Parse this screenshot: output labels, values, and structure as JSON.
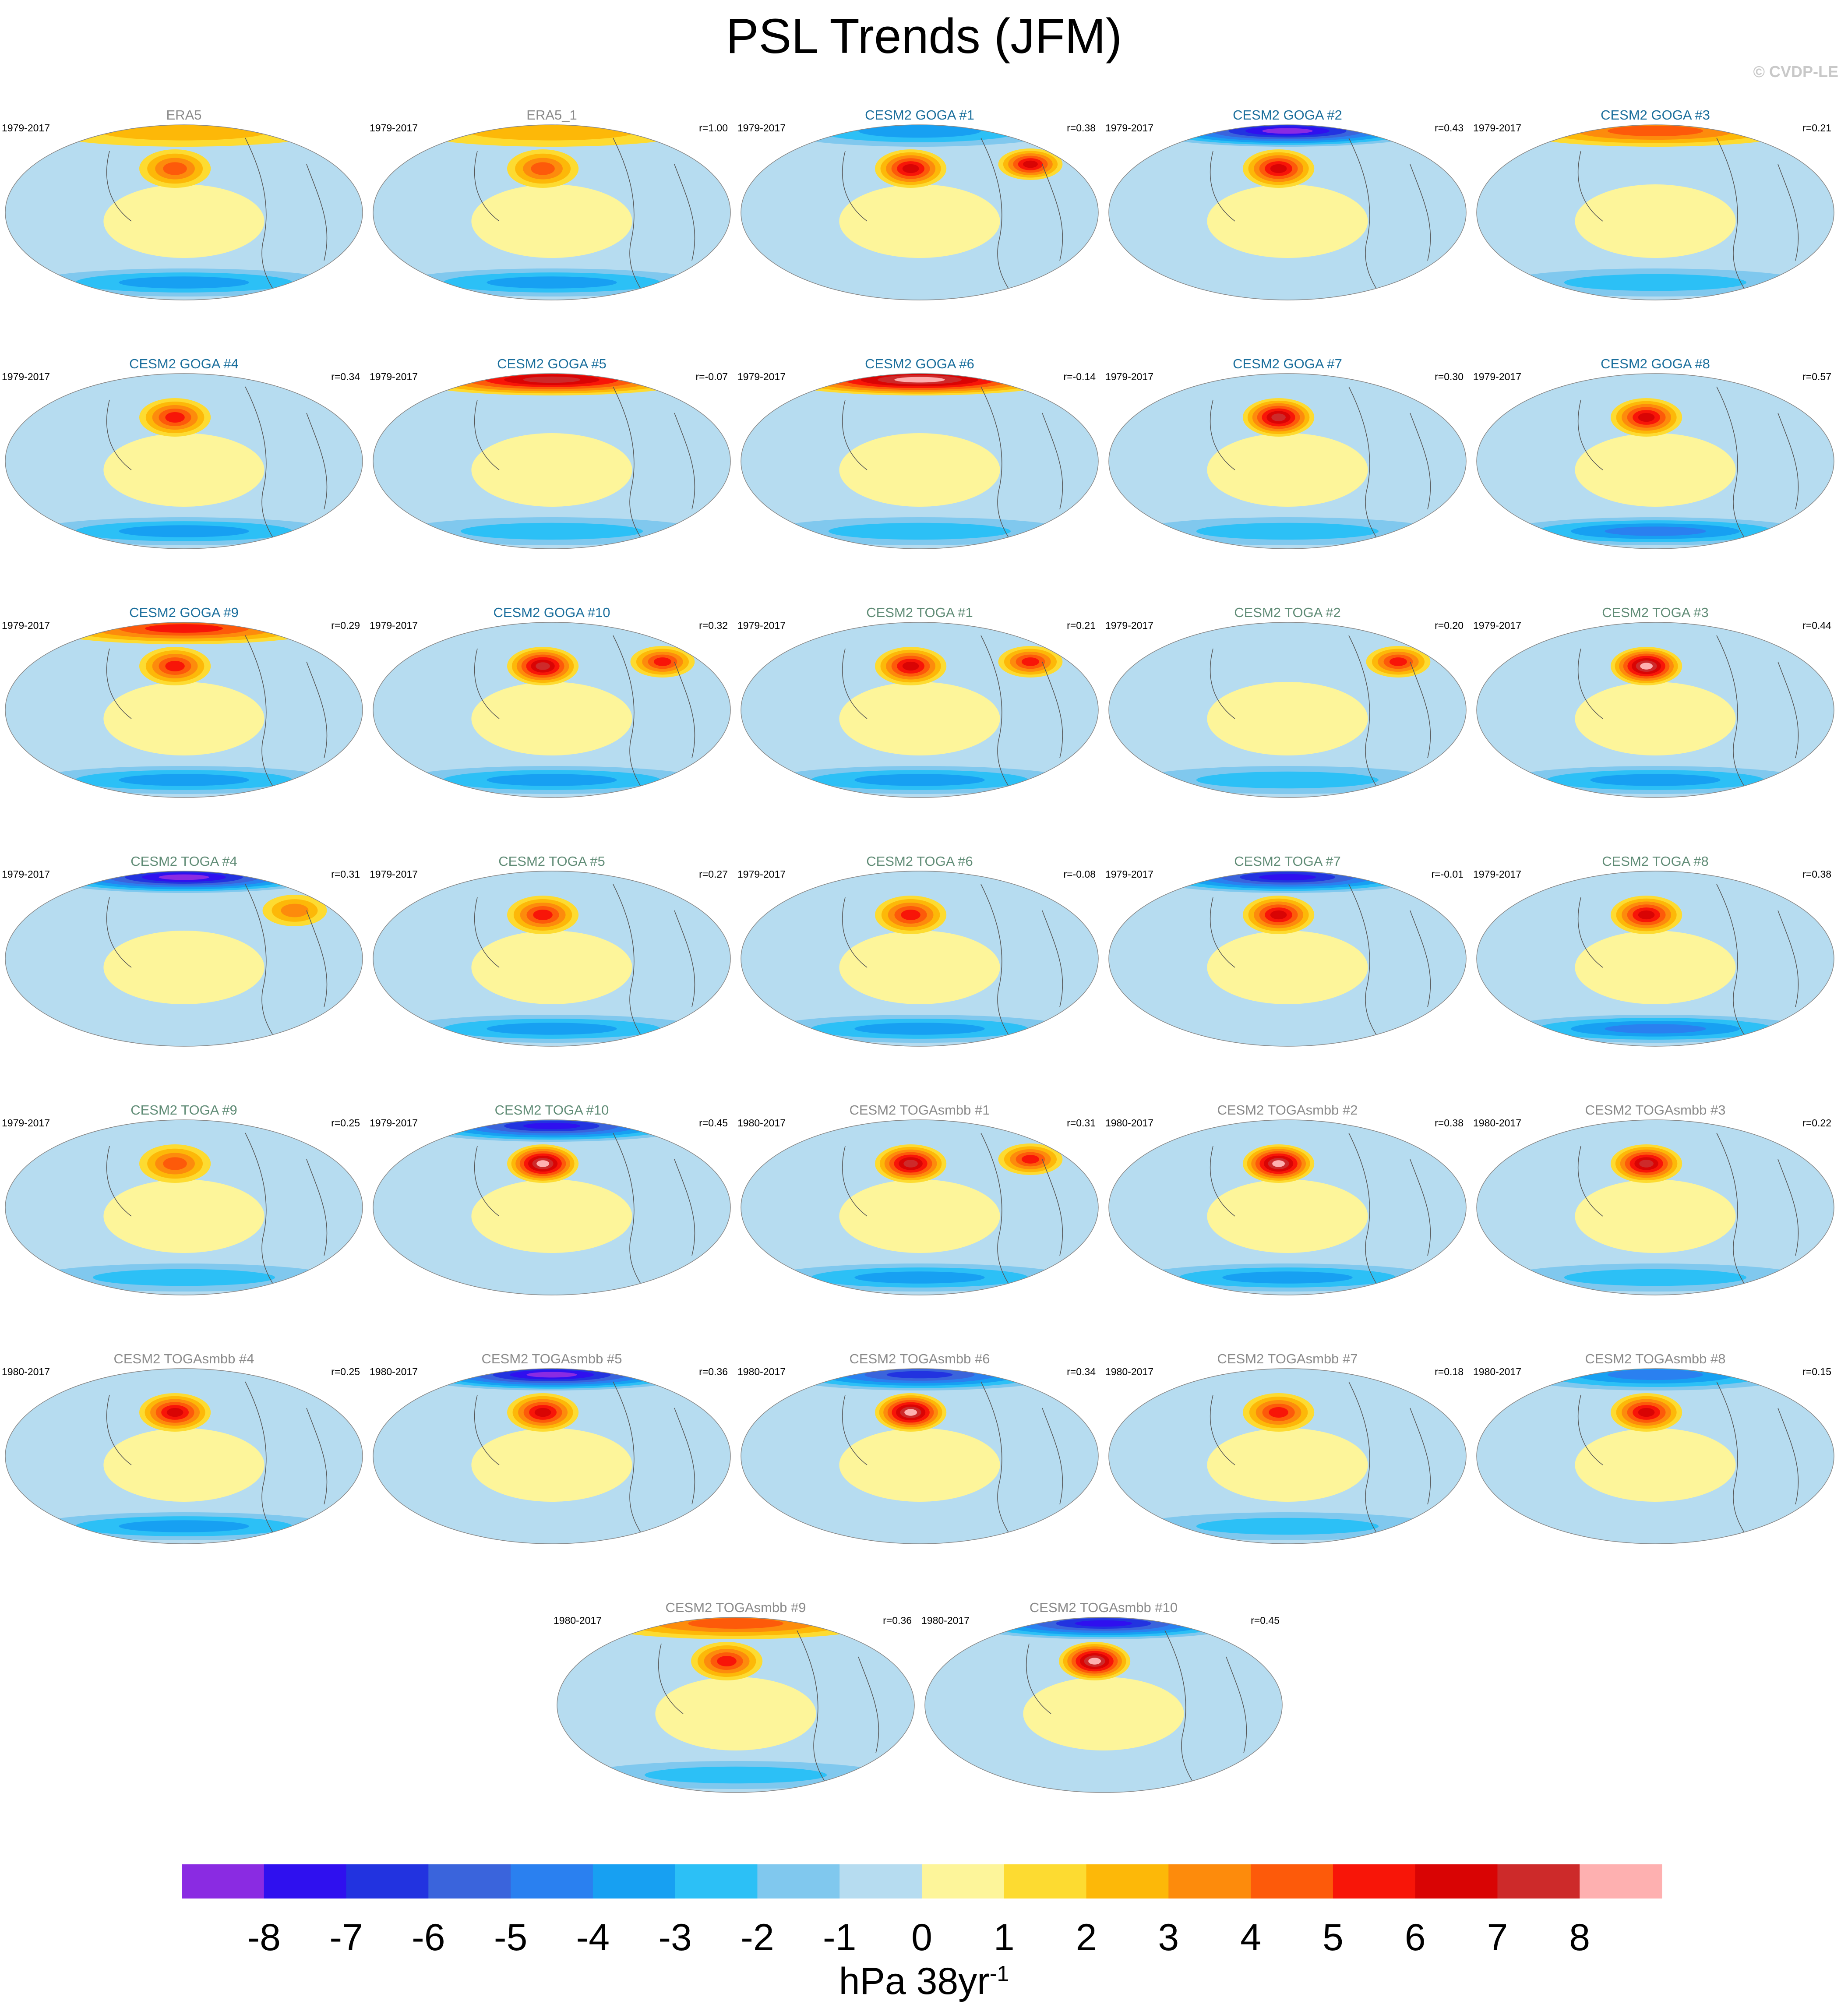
{
  "title": "PSL Trends (JFM)",
  "copyright": "© CVDP-LE",
  "chart_data": {
    "type": "heatmap",
    "title": "PSL Trends (JFM)",
    "projection": "global map panels, contour-filled",
    "panels": [
      {
        "name": "ERA5",
        "period": "1979-2017",
        "r": "",
        "title_color": "#8a8a8a",
        "maxima": [
          [
            "N Pacific",
            4
          ],
          [
            "Arctic",
            2
          ]
        ],
        "minima": [
          [
            "Southern Ocean",
            -3
          ]
        ]
      },
      {
        "name": "ERA5_1",
        "period": "1979-2017",
        "r": "r=1.00",
        "title_color": "#8a8a8a",
        "maxima": [
          [
            "N Pacific",
            4
          ],
          [
            "Arctic",
            2
          ]
        ],
        "minima": [
          [
            "Southern Ocean",
            -3
          ]
        ]
      },
      {
        "name": "CESM2 GOGA #1",
        "period": "1979-2017",
        "r": "r=0.38",
        "title_color": "#1a6e9c",
        "maxima": [
          [
            "N Pacific",
            6
          ],
          [
            "Eurasia",
            6
          ]
        ],
        "minima": [
          [
            "Arctic",
            -3
          ]
        ]
      },
      {
        "name": "CESM2 GOGA #2",
        "period": "1979-2017",
        "r": "r=0.43",
        "title_color": "#1a6e9c",
        "maxima": [
          [
            "N Pacific",
            6
          ]
        ],
        "minima": [
          [
            "Arctic",
            -8
          ]
        ]
      },
      {
        "name": "CESM2 GOGA #3",
        "period": "1979-2017",
        "r": "r=0.21",
        "title_color": "#1a6e9c",
        "maxima": [
          [
            "Arctic",
            4
          ]
        ],
        "minima": [
          [
            "Southern Ocean",
            -2
          ]
        ]
      },
      {
        "name": "CESM2 GOGA #4",
        "period": "1979-2017",
        "r": "r=0.34",
        "title_color": "#1a6e9c",
        "maxima": [
          [
            "N Pacific",
            5
          ]
        ],
        "minima": [
          [
            "Southern Ocean",
            -3
          ]
        ]
      },
      {
        "name": "CESM2 GOGA #5",
        "period": "1979-2017",
        "r": "r=-0.07",
        "title_color": "#1a6e9c",
        "maxima": [
          [
            "Arctic",
            7
          ]
        ],
        "minima": [
          [
            "Southern Ocean",
            -2
          ]
        ]
      },
      {
        "name": "CESM2 GOGA #6",
        "period": "1979-2017",
        "r": "r=-0.14",
        "title_color": "#1a6e9c",
        "maxima": [
          [
            "Arctic",
            8
          ]
        ],
        "minima": [
          [
            "Southern Ocean",
            -2
          ]
        ]
      },
      {
        "name": "CESM2 GOGA #7",
        "period": "1979-2017",
        "r": "r=0.30",
        "title_color": "#1a6e9c",
        "maxima": [
          [
            "N Pacific",
            7
          ]
        ],
        "minima": [
          [
            "Southern Ocean",
            -2
          ]
        ]
      },
      {
        "name": "CESM2 GOGA #8",
        "period": "1979-2017",
        "r": "r=0.57",
        "title_color": "#1a6e9c",
        "maxima": [
          [
            "N Pacific",
            6
          ]
        ],
        "minima": [
          [
            "Southern Ocean",
            -4
          ]
        ]
      },
      {
        "name": "CESM2 GOGA #9",
        "period": "1979-2017",
        "r": "r=0.29",
        "title_color": "#1a6e9c",
        "maxima": [
          [
            "N Pacific",
            5
          ],
          [
            "Arctic",
            5
          ]
        ],
        "minima": [
          [
            "Southern Ocean",
            -3
          ]
        ]
      },
      {
        "name": "CESM2 GOGA #10",
        "period": "1979-2017",
        "r": "r=0.32",
        "title_color": "#1a6e9c",
        "maxima": [
          [
            "N Pacific",
            7
          ],
          [
            "Eurasia",
            5
          ]
        ],
        "minima": [
          [
            "Southern Ocean",
            -3
          ]
        ]
      },
      {
        "name": "CESM2 TOGA #1",
        "period": "1979-2017",
        "r": "r=0.21",
        "title_color": "#5f8b75",
        "maxima": [
          [
            "N Pacific",
            6
          ],
          [
            "Eurasia",
            5
          ]
        ],
        "minima": [
          [
            "Southern Ocean",
            -3
          ]
        ]
      },
      {
        "name": "CESM2 TOGA #2",
        "period": "1979-2017",
        "r": "r=0.20",
        "title_color": "#5f8b75",
        "maxima": [
          [
            "Eurasia",
            5
          ]
        ],
        "minima": [
          [
            "Southern Ocean",
            -2
          ]
        ]
      },
      {
        "name": "CESM2 TOGA #3",
        "period": "1979-2017",
        "r": "r=0.44",
        "title_color": "#5f8b75",
        "maxima": [
          [
            "N Pacific",
            8
          ]
        ],
        "minima": [
          [
            "Southern Ocean",
            -3
          ]
        ]
      },
      {
        "name": "CESM2 TOGA #4",
        "period": "1979-2017",
        "r": "r=0.31",
        "title_color": "#5f8b75",
        "maxima": [
          [
            "Eurasia",
            3
          ]
        ],
        "minima": [
          [
            "Arctic",
            -8
          ]
        ]
      },
      {
        "name": "CESM2 TOGA #5",
        "period": "1979-2017",
        "r": "r=0.27",
        "title_color": "#5f8b75",
        "maxima": [
          [
            "N Pacific",
            5
          ]
        ],
        "minima": [
          [
            "Southern Ocean",
            -3
          ]
        ]
      },
      {
        "name": "CESM2 TOGA #6",
        "period": "1979-2017",
        "r": "r=-0.08",
        "title_color": "#5f8b75",
        "maxima": [
          [
            "N Pacific",
            5
          ]
        ],
        "minima": [
          [
            "Southern Ocean",
            -3
          ]
        ]
      },
      {
        "name": "CESM2 TOGA #7",
        "period": "1979-2017",
        "r": "r=-0.01",
        "title_color": "#5f8b75",
        "maxima": [
          [
            "N Pacific",
            6
          ]
        ],
        "minima": [
          [
            "Arctic",
            -7
          ]
        ]
      },
      {
        "name": "CESM2 TOGA #8",
        "period": "1979-2017",
        "r": "r=0.38",
        "title_color": "#5f8b75",
        "maxima": [
          [
            "N Pacific",
            6
          ]
        ],
        "minima": [
          [
            "Southern Ocean",
            -4
          ]
        ]
      },
      {
        "name": "CESM2 TOGA #9",
        "period": "1979-2017",
        "r": "r=0.25",
        "title_color": "#5f8b75",
        "maxima": [
          [
            "N Pacific",
            4
          ]
        ],
        "minima": [
          [
            "Southern Ocean",
            -2
          ]
        ]
      },
      {
        "name": "CESM2 TOGA #10",
        "period": "1979-2017",
        "r": "r=0.45",
        "title_color": "#5f8b75",
        "maxima": [
          [
            "N Pacific",
            8
          ]
        ],
        "minima": [
          [
            "Arctic",
            -7
          ]
        ]
      },
      {
        "name": "CESM2 TOGAsmbb #1",
        "period": "1980-2017",
        "r": "r=0.31",
        "title_color": "#8a8a8a",
        "maxima": [
          [
            "N Pacific",
            7
          ],
          [
            "Eurasia",
            5
          ]
        ],
        "minima": [
          [
            "Southern Ocean",
            -3
          ]
        ]
      },
      {
        "name": "CESM2 TOGAsmbb #2",
        "period": "1980-2017",
        "r": "r=0.38",
        "title_color": "#8a8a8a",
        "maxima": [
          [
            "N Pacific",
            8
          ]
        ],
        "minima": [
          [
            "Southern Ocean",
            -3
          ]
        ]
      },
      {
        "name": "CESM2 TOGAsmbb #3",
        "period": "1980-2017",
        "r": "r=0.22",
        "title_color": "#8a8a8a",
        "maxima": [
          [
            "N Pacific",
            7
          ]
        ],
        "minima": [
          [
            "Southern Ocean",
            -2
          ]
        ]
      },
      {
        "name": "CESM2 TOGAsmbb #4",
        "period": "1980-2017",
        "r": "r=0.25",
        "title_color": "#8a8a8a",
        "maxima": [
          [
            "N Pacific",
            6
          ]
        ],
        "minima": [
          [
            "Southern Ocean",
            -3
          ]
        ]
      },
      {
        "name": "CESM2 TOGAsmbb #5",
        "period": "1980-2017",
        "r": "r=0.36",
        "title_color": "#8a8a8a",
        "maxima": [
          [
            "N Pacific",
            6
          ]
        ],
        "minima": [
          [
            "Arctic",
            -8
          ]
        ]
      },
      {
        "name": "CESM2 TOGAsmbb #6",
        "period": "1980-2017",
        "r": "r=0.34",
        "title_color": "#8a8a8a",
        "maxima": [
          [
            "N Pacific",
            8
          ]
        ],
        "minima": [
          [
            "Arctic",
            -6
          ]
        ]
      },
      {
        "name": "CESM2 TOGAsmbb #7",
        "period": "1980-2017",
        "r": "r=0.18",
        "title_color": "#8a8a8a",
        "maxima": [
          [
            "N Pacific",
            5
          ]
        ],
        "minima": [
          [
            "Southern Ocean",
            -2
          ]
        ]
      },
      {
        "name": "CESM2 TOGAsmbb #8",
        "period": "1980-2017",
        "r": "r=0.15",
        "title_color": "#8a8a8a",
        "maxima": [
          [
            "N Pacific",
            6
          ]
        ],
        "minima": [
          [
            "Arctic",
            -4
          ]
        ]
      },
      {
        "name": "CESM2 TOGAsmbb #9",
        "period": "1980-2017",
        "r": "r=0.36",
        "title_color": "#8a8a8a",
        "maxima": [
          [
            "N Pacific",
            5
          ],
          [
            "Arctic",
            4
          ]
        ],
        "minima": [
          [
            "Southern Ocean",
            -2
          ]
        ]
      },
      {
        "name": "CESM2 TOGAsmbb #10",
        "period": "1980-2017",
        "r": "r=0.45",
        "title_color": "#8a8a8a",
        "maxima": [
          [
            "N Pacific",
            8
          ]
        ],
        "minima": [
          [
            "Arctic",
            -7
          ]
        ]
      }
    ],
    "colorbar": {
      "levels": [
        -8,
        -7,
        -6,
        -5,
        -4,
        -3,
        -2,
        -1,
        0,
        1,
        2,
        3,
        4,
        5,
        6,
        7,
        8
      ],
      "tick_labels": [
        "-8",
        "-7",
        "-6",
        "-5",
        "-4",
        "-3",
        "-2",
        "-1",
        "0",
        "1",
        "2",
        "3",
        "4",
        "5",
        "6",
        "7",
        "8"
      ],
      "colors": [
        "#8a2be2",
        "#2f10ef",
        "#2233e0",
        "#3a64dc",
        "#2a80f0",
        "#17a0f2",
        "#2cc0f6",
        "#80c8ee",
        "#b6dcf0",
        "#fdf59a",
        "#fddb31",
        "#fdb808",
        "#fd8b0c",
        "#fd5a0a",
        "#f81508",
        "#d90404",
        "#cd2a2a",
        "#feb0b0"
      ],
      "units": "hPa 38yr",
      "units_exponent": "-1"
    }
  }
}
